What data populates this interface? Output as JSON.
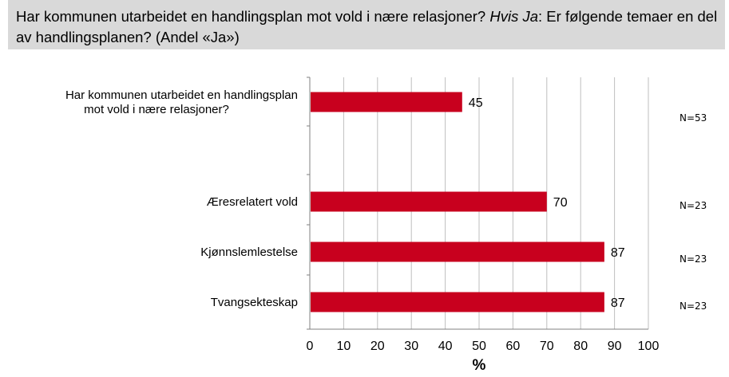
{
  "title": {
    "part1": "Har kommunen utarbeidet en handlingsplan mot vold i nære relasjoner? ",
    "emphasis": "Hvis Ja",
    "part2": ": Er følgende temaer en del av handlingsplanen? (Andel «Ja»)"
  },
  "chart_data": {
    "type": "bar",
    "orientation": "horizontal",
    "categories": [
      [
        "Har kommunen utarbeidet en handlingsplan",
        "mot vold i nære relasjoner?"
      ],
      [
        "Æresrelatert vold"
      ],
      [
        "Kjønnslemlestelse"
      ],
      [
        "Tvangsekteskap"
      ]
    ],
    "values": [
      45,
      70,
      87,
      87
    ],
    "n_labels": [
      "N=53",
      "N=23",
      "N=23",
      "N=23"
    ],
    "xlabel": "%",
    "xlim": [
      0,
      100
    ],
    "xticks": [
      0,
      10,
      20,
      30,
      40,
      50,
      60,
      70,
      80,
      90,
      100
    ],
    "grid": true,
    "bar_color": "#c8001e",
    "grid_color": "#bfbfbf"
  }
}
